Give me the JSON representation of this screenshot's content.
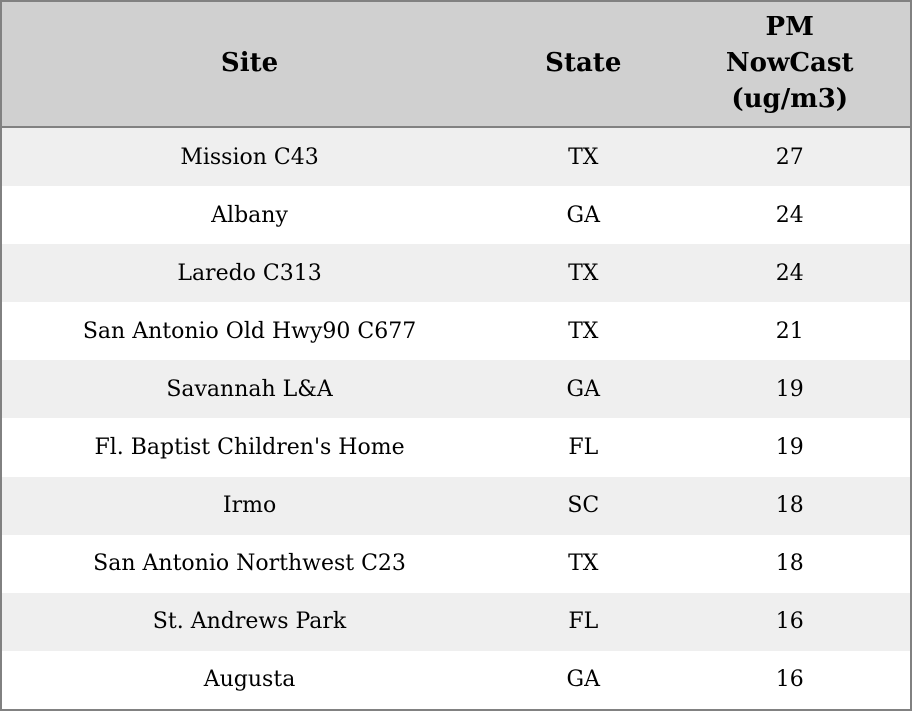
{
  "accent_colors": {
    "header_background": "#d0d0d0",
    "row_stripe": "#efefef",
    "row_plain": "#ffffff",
    "border": "#818181",
    "text": "#000000"
  },
  "table": {
    "columns": [
      "Site",
      "State",
      "PM NowCast (ug/m3)"
    ],
    "rows": [
      {
        "site": "Mission C43",
        "state": "TX",
        "pm_nowcast": "27"
      },
      {
        "site": "Albany",
        "state": "GA",
        "pm_nowcast": "24"
      },
      {
        "site": "Laredo C313",
        "state": "TX",
        "pm_nowcast": "24"
      },
      {
        "site": "San Antonio Old Hwy90 C677",
        "state": "TX",
        "pm_nowcast": "21"
      },
      {
        "site": "Savannah L&A",
        "state": "GA",
        "pm_nowcast": "19"
      },
      {
        "site": "Fl. Baptist Children's Home",
        "state": "FL",
        "pm_nowcast": "19"
      },
      {
        "site": "Irmo",
        "state": "SC",
        "pm_nowcast": "18"
      },
      {
        "site": "San Antonio Northwest C23",
        "state": "TX",
        "pm_nowcast": "18"
      },
      {
        "site": "St. Andrews Park",
        "state": "FL",
        "pm_nowcast": "16"
      },
      {
        "site": "Augusta",
        "state": "GA",
        "pm_nowcast": "16"
      }
    ]
  },
  "chart_data": {
    "type": "table",
    "title": "",
    "columns": [
      "Site",
      "State",
      "PM NowCast (ug/m3)"
    ],
    "categories": [
      "Mission C43",
      "Albany",
      "Laredo C313",
      "San Antonio Old Hwy90 C677",
      "Savannah L&A",
      "Fl. Baptist Children's Home",
      "Irmo",
      "San Antonio Northwest C23",
      "St. Andrews Park",
      "Augusta"
    ],
    "series": [
      {
        "name": "State",
        "values": [
          "TX",
          "GA",
          "TX",
          "TX",
          "GA",
          "FL",
          "SC",
          "TX",
          "FL",
          "GA"
        ]
      },
      {
        "name": "PM NowCast (ug/m3)",
        "values": [
          27,
          24,
          24,
          21,
          19,
          19,
          18,
          18,
          16,
          16
        ]
      }
    ],
    "layout_hints": {
      "striped_rows": true,
      "header_bold": true,
      "text_align": "center",
      "grid": "outer-border-and-header-rule-only"
    }
  }
}
